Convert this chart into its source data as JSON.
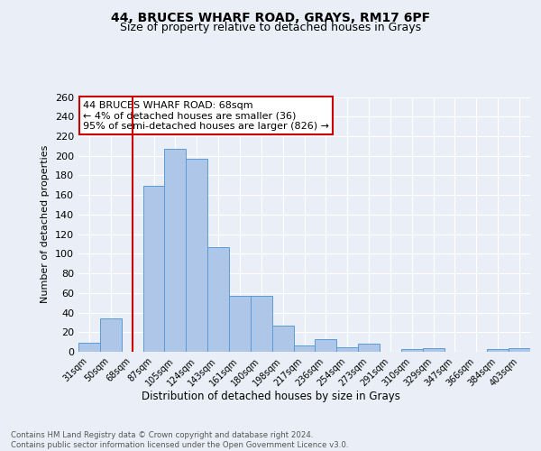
{
  "title1": "44, BRUCES WHARF ROAD, GRAYS, RM17 6PF",
  "title2": "Size of property relative to detached houses in Grays",
  "xlabel": "Distribution of detached houses by size in Grays",
  "ylabel": "Number of detached properties",
  "categories": [
    "31sqm",
    "50sqm",
    "68sqm",
    "87sqm",
    "105sqm",
    "124sqm",
    "143sqm",
    "161sqm",
    "180sqm",
    "198sqm",
    "217sqm",
    "236sqm",
    "254sqm",
    "273sqm",
    "291sqm",
    "310sqm",
    "329sqm",
    "347sqm",
    "366sqm",
    "384sqm",
    "403sqm"
  ],
  "values": [
    9,
    34,
    0,
    169,
    207,
    197,
    107,
    57,
    57,
    27,
    6,
    13,
    5,
    8,
    0,
    3,
    4,
    0,
    0,
    3,
    4
  ],
  "bar_color": "#aec6e8",
  "bar_edge_color": "#5b9bd5",
  "highlight_index": 2,
  "highlight_line_color": "#cc0000",
  "annotation_text": "44 BRUCES WHARF ROAD: 68sqm\n← 4% of detached houses are smaller (36)\n95% of semi-detached houses are larger (826) →",
  "annotation_box_color": "#ffffff",
  "annotation_box_edge_color": "#cc0000",
  "ylim": [
    0,
    260
  ],
  "yticks": [
    0,
    20,
    40,
    60,
    80,
    100,
    120,
    140,
    160,
    180,
    200,
    220,
    240,
    260
  ],
  "footer": "Contains HM Land Registry data © Crown copyright and database right 2024.\nContains public sector information licensed under the Open Government Licence v3.0.",
  "background_color": "#eaeff7",
  "plot_bg_color": "#eaeff7"
}
